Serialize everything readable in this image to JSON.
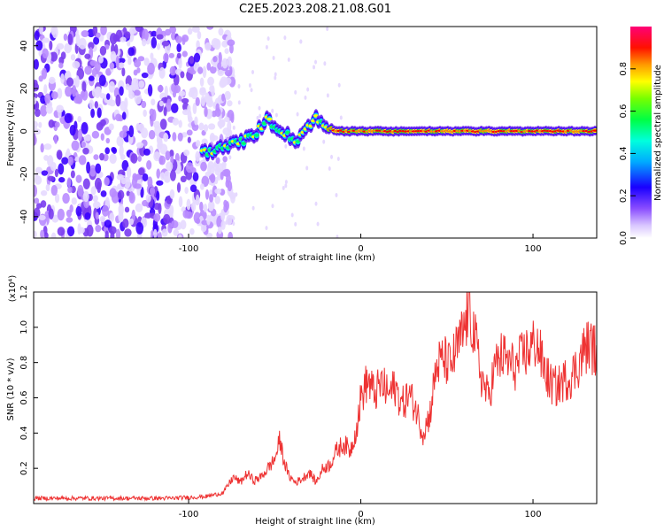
{
  "title": "C2E5.2023.208.21.08.G01",
  "colors": {
    "snr_line": "#ee3333",
    "colormap": [
      "#ffffff",
      "#e6d9ff",
      "#b98cff",
      "#7a3cf0",
      "#3a00ff",
      "#0066ff",
      "#00ddff",
      "#00ff66",
      "#55ff00",
      "#ffff00",
      "#ff8800",
      "#ff0000",
      "#ff0066"
    ]
  },
  "chart_data": [
    {
      "type": "heatmap",
      "panel": "spectrogram",
      "xlabel": "Height of straight line (km)",
      "ylabel": "Frequency (Hz)",
      "xlim": [
        -190,
        137
      ],
      "ylim": [
        -50,
        49
      ],
      "xticks": [
        -100,
        0,
        100
      ],
      "yticks": [
        -40,
        -20,
        0,
        20,
        40
      ],
      "noise_region_x": [
        -190,
        -80
      ],
      "signal_track": {
        "x": [
          -92,
          -85,
          -78,
          -70,
          -62,
          -57,
          -54,
          -50,
          -45,
          -41,
          -38,
          -34,
          -30,
          -26,
          -22,
          -18,
          -12,
          -5,
          0,
          10,
          20,
          40,
          60,
          80,
          100,
          120,
          137
        ],
        "y": [
          -10,
          -9,
          -7,
          -5,
          -2,
          3,
          6,
          2,
          0,
          -3,
          -5,
          -1,
          3,
          6,
          3,
          1,
          0,
          0,
          0,
          0,
          0,
          0,
          0,
          0,
          0,
          0,
          0
        ]
      },
      "colorbar": {
        "label": "Normalized spectral amplitude",
        "range": [
          0,
          1
        ],
        "ticks": [
          "0.0",
          "0.2",
          "0.4",
          "0.6",
          "0.8"
        ]
      }
    },
    {
      "type": "line",
      "panel": "snr",
      "xlabel": "Height of straight line (km)",
      "ylabel": "SNR (10 * v/v)",
      "yscale_label": "(x10⁴)",
      "xlim": [
        -190,
        137
      ],
      "ylim": [
        0,
        1.2
      ],
      "xticks": [
        -100,
        0,
        100
      ],
      "yticks": [
        "0.2",
        "0.4",
        "0.6",
        "0.8",
        "1.0",
        "1.2"
      ],
      "series": [
        {
          "name": "SNR",
          "x": [
            -190,
            -150,
            -110,
            -90,
            -80,
            -74,
            -70,
            -66,
            -62,
            -58,
            -54,
            -50,
            -47,
            -45,
            -42,
            -38,
            -34,
            -30,
            -26,
            -22,
            -18,
            -14,
            -10,
            -6,
            -2,
            0,
            4,
            8,
            12,
            16,
            20,
            24,
            28,
            32,
            36,
            40,
            44,
            48,
            52,
            56,
            60,
            63,
            66,
            70,
            74,
            78,
            82,
            86,
            90,
            94,
            98,
            102,
            106,
            110,
            114,
            118,
            122,
            126,
            130,
            133,
            137
          ],
          "y": [
            0.03,
            0.03,
            0.03,
            0.04,
            0.06,
            0.15,
            0.12,
            0.17,
            0.13,
            0.15,
            0.2,
            0.25,
            0.36,
            0.26,
            0.16,
            0.12,
            0.14,
            0.18,
            0.12,
            0.2,
            0.22,
            0.3,
            0.34,
            0.3,
            0.45,
            0.6,
            0.7,
            0.62,
            0.68,
            0.62,
            0.66,
            0.56,
            0.62,
            0.54,
            0.4,
            0.5,
            0.78,
            0.82,
            0.78,
            0.88,
            0.98,
            1.12,
            0.95,
            0.72,
            0.6,
            0.78,
            0.84,
            0.8,
            0.77,
            0.84,
            0.88,
            0.92,
            0.78,
            0.68,
            0.66,
            0.7,
            0.72,
            0.78,
            0.88,
            0.9,
            0.86
          ]
        }
      ]
    }
  ]
}
